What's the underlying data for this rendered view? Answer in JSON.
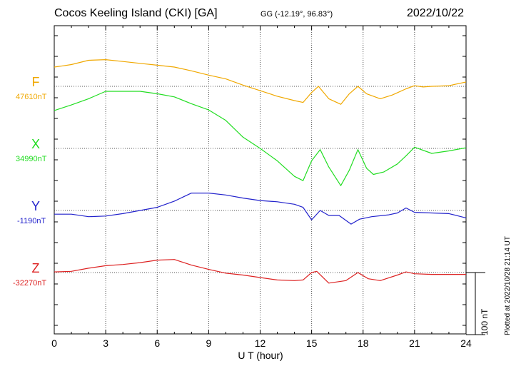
{
  "header": {
    "station": "Cocos Keeling Island (CKI)  [GA]",
    "coords": "GG (-12.19°,  96.83°)",
    "date": "2022/10/22"
  },
  "footer_note": "Plotted at 2022/10/28 21:14 UT",
  "chart_data": {
    "type": "line",
    "xlabel": "U T (hour)",
    "xlim": [
      0,
      24
    ],
    "xticks": [
      "0",
      "3",
      "6",
      "9",
      "12",
      "15",
      "18",
      "21",
      "24"
    ],
    "scale_label": "100 nT",
    "scale_nT": 100,
    "series": [
      {
        "name": "F",
        "baseline_label": "47610nT",
        "color": "#f0a800",
        "points": [
          [
            0,
            31
          ],
          [
            0.5,
            33
          ],
          [
            1,
            35
          ],
          [
            2,
            42
          ],
          [
            3,
            43
          ],
          [
            4,
            40
          ],
          [
            5,
            37
          ],
          [
            6,
            34
          ],
          [
            7,
            31
          ],
          [
            8,
            25
          ],
          [
            9,
            18
          ],
          [
            10,
            12
          ],
          [
            11,
            2
          ],
          [
            12,
            -7
          ],
          [
            13,
            -16
          ],
          [
            14,
            -23
          ],
          [
            14.5,
            -26
          ],
          [
            15,
            -10
          ],
          [
            15.4,
            0
          ],
          [
            16,
            -20
          ],
          [
            16.7,
            -29
          ],
          [
            17.2,
            -12
          ],
          [
            17.7,
            0
          ],
          [
            18.2,
            -12
          ],
          [
            19,
            -20
          ],
          [
            19.7,
            -14
          ],
          [
            20.5,
            -4
          ],
          [
            21,
            1
          ],
          [
            21.5,
            -1
          ],
          [
            22,
            0
          ],
          [
            23,
            1
          ],
          [
            24,
            7
          ]
        ]
      },
      {
        "name": "X",
        "baseline_label": "34990nT",
        "color": "#22dd22",
        "points": [
          [
            0,
            61
          ],
          [
            1,
            70
          ],
          [
            2,
            80
          ],
          [
            3,
            92
          ],
          [
            4,
            92
          ],
          [
            5,
            92
          ],
          [
            6,
            88
          ],
          [
            7,
            83
          ],
          [
            8,
            72
          ],
          [
            9,
            62
          ],
          [
            10,
            45
          ],
          [
            11,
            18
          ],
          [
            12,
            0
          ],
          [
            13,
            -20
          ],
          [
            14,
            -45
          ],
          [
            14.5,
            -52
          ],
          [
            15,
            -20
          ],
          [
            15.5,
            -2
          ],
          [
            16,
            -30
          ],
          [
            16.7,
            -60
          ],
          [
            17.2,
            -35
          ],
          [
            17.7,
            -2
          ],
          [
            18.2,
            -32
          ],
          [
            18.6,
            -42
          ],
          [
            19.2,
            -38
          ],
          [
            20,
            -25
          ],
          [
            20.5,
            -12
          ],
          [
            21,
            2
          ],
          [
            22,
            -8
          ],
          [
            23,
            -4
          ],
          [
            24,
            1
          ]
        ]
      },
      {
        "name": "Y",
        "baseline_label": "-1190nT",
        "color": "#2222cc",
        "points": [
          [
            0,
            -6
          ],
          [
            1,
            -6
          ],
          [
            2,
            -10
          ],
          [
            3,
            -9
          ],
          [
            4,
            -5
          ],
          [
            5,
            0
          ],
          [
            6,
            5
          ],
          [
            7,
            15
          ],
          [
            8,
            28
          ],
          [
            9,
            28
          ],
          [
            10,
            25
          ],
          [
            11,
            20
          ],
          [
            12,
            16
          ],
          [
            13,
            14
          ],
          [
            14,
            10
          ],
          [
            14.5,
            5
          ],
          [
            15,
            -15
          ],
          [
            15.5,
            0
          ],
          [
            16,
            -8
          ],
          [
            16.6,
            -8
          ],
          [
            17.3,
            -22
          ],
          [
            17.8,
            -14
          ],
          [
            18.5,
            -10
          ],
          [
            19.5,
            -7
          ],
          [
            20,
            -4
          ],
          [
            20.5,
            4
          ],
          [
            21,
            -3
          ],
          [
            22,
            -4
          ],
          [
            23,
            -5
          ],
          [
            24,
            -12
          ]
        ]
      },
      {
        "name": "Z",
        "baseline_label": "-32270nT",
        "color": "#dd2222",
        "points": [
          [
            0,
            1
          ],
          [
            1,
            2
          ],
          [
            2,
            7
          ],
          [
            3,
            11
          ],
          [
            4,
            13
          ],
          [
            5,
            16
          ],
          [
            6,
            20
          ],
          [
            7,
            21
          ],
          [
            8,
            12
          ],
          [
            9,
            5
          ],
          [
            10,
            -1
          ],
          [
            11,
            -4
          ],
          [
            12,
            -8
          ],
          [
            13,
            -12
          ],
          [
            14,
            -13
          ],
          [
            14.5,
            -12
          ],
          [
            15,
            0
          ],
          [
            15.3,
            2
          ],
          [
            16,
            -17
          ],
          [
            17,
            -13
          ],
          [
            17.7,
            0
          ],
          [
            18.3,
            -10
          ],
          [
            19,
            -13
          ],
          [
            20,
            -4
          ],
          [
            20.5,
            1
          ],
          [
            21,
            -2
          ],
          [
            22,
            -3
          ],
          [
            24,
            -3
          ]
        ]
      }
    ]
  }
}
